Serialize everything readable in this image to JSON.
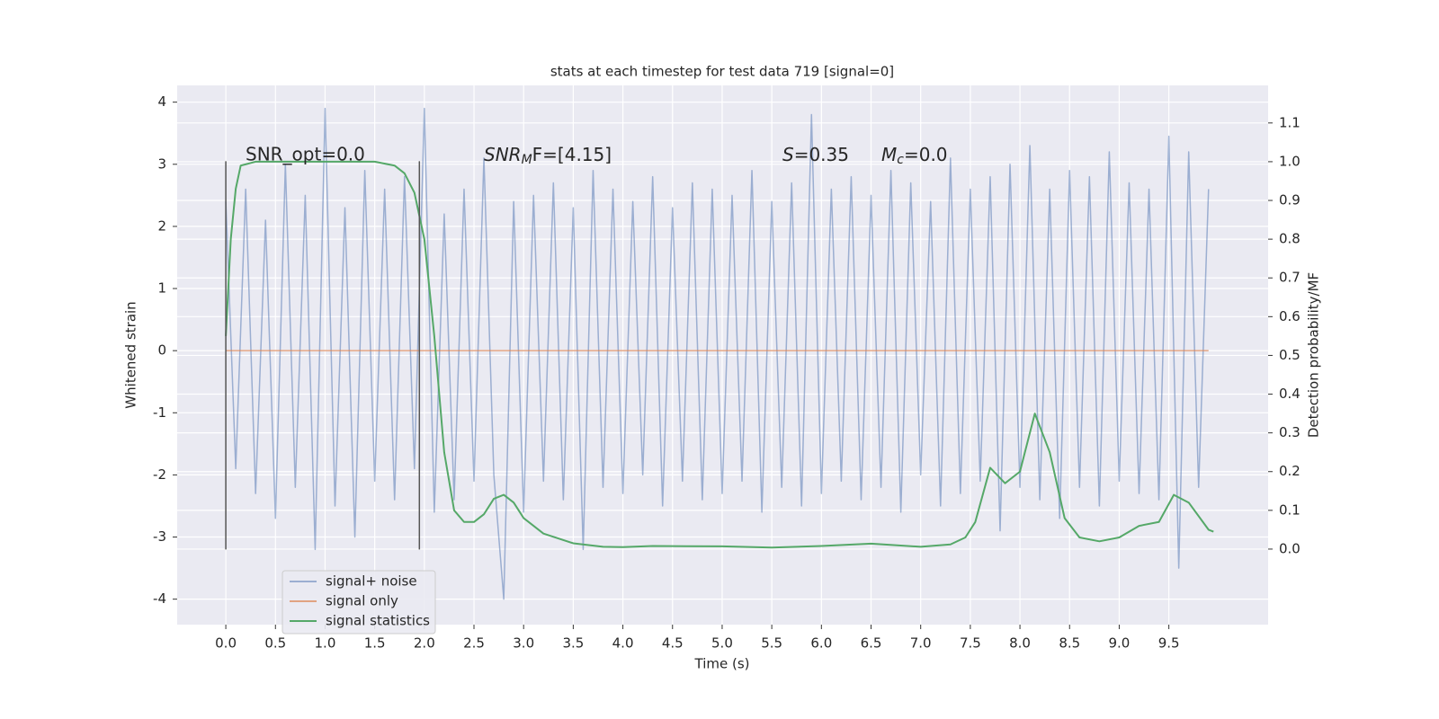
{
  "chart_data": {
    "type": "line",
    "title": "stats at each timestep for test data 719 [signal=0]",
    "xlabel": "Time (s)",
    "ylabel": "Whitened strain",
    "y2label": "Detection probability/MF",
    "xlim": [
      -0.49,
      10.5
    ],
    "ylim": [
      -4.41,
      4.27
    ],
    "y2lim": [
      -0.195,
      1.197
    ],
    "xticks": [
      {
        "value": 0,
        "label": "0.0"
      },
      {
        "value": 0.5,
        "label": "0.5"
      },
      {
        "value": 1,
        "label": "1.0"
      },
      {
        "value": 1.5,
        "label": "1.5"
      },
      {
        "value": 2,
        "label": "2.0"
      },
      {
        "value": 2.5,
        "label": "2.5"
      },
      {
        "value": 3,
        "label": "3.0"
      },
      {
        "value": 3.5,
        "label": "3.5"
      },
      {
        "value": 4,
        "label": "4.0"
      },
      {
        "value": 4.5,
        "label": "4.5"
      },
      {
        "value": 5,
        "label": "5.0"
      },
      {
        "value": 5.5,
        "label": "5.5"
      },
      {
        "value": 6,
        "label": "6.0"
      },
      {
        "value": 6.5,
        "label": "6.5"
      },
      {
        "value": 7,
        "label": "7.0"
      },
      {
        "value": 7.5,
        "label": "7.5"
      },
      {
        "value": 8,
        "label": "8.0"
      },
      {
        "value": 8.5,
        "label": "8.5"
      },
      {
        "value": 9,
        "label": "9.0"
      },
      {
        "value": 9.5,
        "label": "9.5"
      }
    ],
    "yticks": [
      -4,
      -3,
      -2,
      -1,
      0,
      1,
      2,
      3,
      4
    ],
    "y2ticks": [
      {
        "value": 0,
        "label": "0.0"
      },
      {
        "value": 0.1,
        "label": "0.1"
      },
      {
        "value": 0.2,
        "label": "0.2"
      },
      {
        "value": 0.3,
        "label": "0.3"
      },
      {
        "value": 0.4,
        "label": "0.4"
      },
      {
        "value": 0.5,
        "label": "0.5"
      },
      {
        "value": 0.6,
        "label": "0.6"
      },
      {
        "value": 0.7,
        "label": "0.7"
      },
      {
        "value": 0.8,
        "label": "0.8"
      },
      {
        "value": 0.9,
        "label": "0.9"
      },
      {
        "value": 1.0,
        "label": "1.0"
      },
      {
        "value": 1.1,
        "label": "1.1"
      }
    ],
    "grid": true,
    "legend": "lower left",
    "series": [
      {
        "name": "signal+ noise",
        "color": "#4c72b0",
        "opacity": 0.5,
        "x": [
          0,
          0.1,
          0.2,
          0.3,
          0.4,
          0.5,
          0.6,
          0.7,
          0.8,
          0.9,
          1,
          1.1,
          1.2,
          1.3,
          1.4,
          1.5,
          1.6,
          1.7,
          1.8,
          1.9,
          2,
          2.1,
          2.2,
          2.3,
          2.4,
          2.5,
          2.6,
          2.7,
          2.8,
          2.9,
          3,
          3.1,
          3.2,
          3.3,
          3.4,
          3.5,
          3.6,
          3.7,
          3.8,
          3.9,
          4,
          4.1,
          4.2,
          4.3,
          4.4,
          4.5,
          4.6,
          4.7,
          4.8,
          4.9,
          5,
          5.1,
          5.2,
          5.3,
          5.4,
          5.5,
          5.6,
          5.7,
          5.8,
          5.9,
          6,
          6.1,
          6.2,
          6.3,
          6.4,
          6.5,
          6.6,
          6.7,
          6.8,
          6.9,
          7,
          7.1,
          7.2,
          7.3,
          7.4,
          7.5,
          7.6,
          7.7,
          7.8,
          7.9,
          8,
          8.1,
          8.2,
          8.3,
          8.4,
          8.5,
          8.6,
          8.7,
          8.8,
          8.9,
          9,
          9.1,
          9.2,
          9.3,
          9.4,
          9.5,
          9.6,
          9.7,
          9.8,
          9.9
        ],
        "values": [
          2.4,
          -1.9,
          2.6,
          -2.3,
          2.1,
          -2.7,
          3.0,
          -2.2,
          2.5,
          -3.2,
          3.9,
          -2.5,
          2.3,
          -3.0,
          2.9,
          -2.1,
          2.6,
          -2.4,
          2.8,
          -1.9,
          3.9,
          -2.6,
          2.2,
          -2.4,
          2.6,
          -2.1,
          3.1,
          -2.0,
          -4.0,
          2.4,
          -2.6,
          2.5,
          -2.1,
          2.7,
          -2.4,
          2.3,
          -3.2,
          2.9,
          -2.2,
          2.6,
          -2.3,
          2.4,
          -2.0,
          2.8,
          -2.5,
          2.3,
          -2.1,
          2.7,
          -2.4,
          2.6,
          -2.3,
          2.5,
          -2.1,
          2.9,
          -2.6,
          2.4,
          -2.2,
          2.7,
          -2.5,
          3.8,
          -2.3,
          2.6,
          -2.1,
          2.8,
          -2.4,
          2.5,
          -2.2,
          2.9,
          -2.6,
          2.7,
          -2.0,
          2.4,
          -2.5,
          3.1,
          -2.3,
          2.6,
          -2.1,
          2.8,
          -2.9,
          3.0,
          -2.2,
          3.3,
          -2.4,
          2.6,
          -2.7,
          2.9,
          -2.2,
          2.8,
          -2.5,
          3.2,
          -2.1,
          2.7,
          -2.3,
          2.6,
          -2.4,
          3.45,
          -3.5,
          3.2,
          -2.2,
          2.6
        ]
      },
      {
        "name": "signal only",
        "color": "#dd8452",
        "opacity": 0.7,
        "x": [
          0,
          9.9
        ],
        "values": [
          0,
          0
        ]
      },
      {
        "name": "signal statistics",
        "color": "#55a868",
        "opacity": 1,
        "axis": "y2",
        "x": [
          0,
          0.05,
          0.1,
          0.15,
          0.3,
          1.0,
          1.5,
          1.7,
          1.8,
          1.9,
          2.0,
          2.1,
          2.2,
          2.3,
          2.4,
          2.5,
          2.6,
          2.7,
          2.8,
          2.9,
          3.0,
          3.2,
          3.5,
          3.8,
          4.0,
          4.3,
          5.0,
          5.5,
          6.0,
          6.5,
          7.0,
          7.3,
          7.45,
          7.55,
          7.7,
          7.85,
          8.0,
          8.15,
          8.3,
          8.45,
          8.6,
          8.8,
          9.0,
          9.2,
          9.4,
          9.55,
          9.7,
          9.9,
          9.95
        ],
        "values": [
          0.55,
          0.8,
          0.93,
          0.99,
          1.0,
          1.0,
          1.0,
          0.99,
          0.97,
          0.92,
          0.8,
          0.55,
          0.25,
          0.1,
          0.07,
          0.07,
          0.09,
          0.13,
          0.14,
          0.12,
          0.08,
          0.04,
          0.015,
          0.006,
          0.005,
          0.008,
          0.007,
          0.004,
          0.008,
          0.014,
          0.006,
          0.012,
          0.03,
          0.07,
          0.21,
          0.17,
          0.2,
          0.35,
          0.25,
          0.08,
          0.03,
          0.02,
          0.03,
          0.06,
          0.07,
          0.14,
          0.12,
          0.05,
          0.045
        ]
      }
    ],
    "vlines": {
      "x": [
        0,
        1.95
      ],
      "ylim": [
        -3.2,
        3.05
      ],
      "color": "#555555"
    },
    "annotations": [
      {
        "text": "SNR_opt=0.0"
      },
      {
        "main": "SNR",
        "sub": "M",
        "rest": "F=[4.15]"
      },
      {
        "main": "S",
        "rest": "=0.35"
      },
      {
        "main": "M",
        "sub": "c",
        "rest": "=0.0"
      }
    ]
  }
}
